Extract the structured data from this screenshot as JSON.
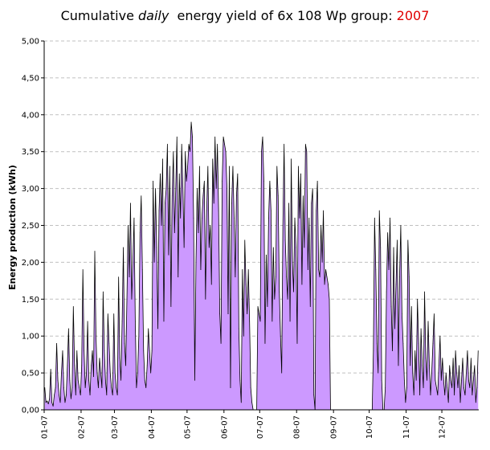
{
  "chart_data": {
    "type": "area",
    "title": {
      "part1": "Cumulative ",
      "emphasis": "daily",
      "part2": "  energy yield of 6x 108 Wp group: ",
      "year": "2007"
    },
    "xlabel": "",
    "ylabel": "Energy production (kWh)",
    "ylim": [
      0,
      5
    ],
    "yticks": [
      "0,00",
      "0,50",
      "1,00",
      "1,50",
      "2,00",
      "2,50",
      "3,00",
      "3,50",
      "4,00",
      "4,50",
      "5,00"
    ],
    "xtick_labels": [
      "01-07",
      "02-07",
      "03-07",
      "04-07",
      "05-07",
      "06-07",
      "07-07",
      "08-07",
      "09-07",
      "10-07",
      "11-07",
      "12-07"
    ],
    "grid": "horizontal dashed",
    "colors": {
      "fill": "#cc99ff",
      "line": "#000000",
      "grid": "#c0c0c0",
      "title_year": "#e00000"
    },
    "days_per_month": [
      31,
      28,
      31,
      30,
      31,
      30,
      31,
      31,
      30,
      31,
      30,
      31
    ],
    "series": [
      {
        "monthly": [
          [
            0.3,
            0.1,
            0.12,
            0.08,
            0.15,
            0.55,
            0.1,
            0.05,
            0.2,
            0.3,
            0.9,
            0.4,
            0.2,
            0.1,
            0.5,
            0.8,
            0.3,
            0.1,
            0.2,
            0.6,
            1.1,
            0.4,
            0.15,
            0.3,
            1.4,
            0.6,
            0.2,
            0.8,
            0.4,
            0.3,
            0.2
          ],
          [
            0.6,
            1.9,
            0.8,
            0.3,
            0.5,
            1.2,
            0.4,
            0.2,
            0.6,
            0.8,
            0.45,
            2.15,
            1.0,
            0.5,
            0.3,
            0.7,
            0.5,
            0.3,
            1.6,
            0.8,
            0.4,
            0.2,
            1.3,
            0.9,
            0.5,
            0.3,
            0.2,
            1.3
          ],
          [
            0.5,
            0.3,
            0.2,
            1.8,
            0.7,
            0.4,
            1.2,
            2.2,
            0.9,
            0.6,
            1.5,
            2.5,
            1.8,
            2.8,
            1.5,
            2.0,
            2.6,
            1.2,
            0.3,
            0.5,
            1.0,
            2.4,
            2.9,
            1.9,
            0.8,
            0.4,
            0.3,
            0.6,
            1.1,
            0.8,
            0.5
          ],
          [
            0.8,
            3.1,
            2.0,
            3.0,
            2.2,
            1.1,
            2.7,
            3.2,
            2.5,
            3.4,
            1.2,
            2.8,
            3.0,
            3.6,
            2.1,
            3.3,
            1.4,
            2.9,
            3.5,
            2.4,
            3.0,
            3.7,
            1.8,
            3.2,
            2.6,
            3.6,
            3.0,
            2.2,
            3.5,
            3.1
          ],
          [
            3.3,
            3.6,
            3.5,
            3.9,
            3.7,
            2.6,
            0.4,
            2.0,
            3.0,
            2.4,
            3.3,
            1.9,
            2.6,
            2.9,
            3.1,
            1.5,
            2.7,
            3.3,
            2.2,
            2.5,
            1.7,
            3.4,
            2.8,
            3.7,
            3.0,
            3.6,
            2.7,
            1.3,
            0.9,
            3.1,
            3.7
          ],
          [
            3.6,
            3.5,
            3.0,
            1.3,
            3.3,
            0.3,
            2.8,
            3.3,
            2.6,
            1.8,
            2.9,
            3.2,
            1.1,
            0.4,
            0.1,
            1.9,
            1.0,
            2.3,
            1.7,
            1.3,
            1.9,
            1.2,
            0.3,
            0.1,
            0,
            0,
            0,
            0,
            1.4,
            1.3
          ],
          [
            1.2,
            3.5,
            3.7,
            3.1,
            0.9,
            2.1,
            1.4,
            2.6,
            3.1,
            2.7,
            1.2,
            2.2,
            1.5,
            1.8,
            3.3,
            2.9,
            1.6,
            1.0,
            0.5,
            2.5,
            3.6,
            2.3,
            1.8,
            1.5,
            2.8,
            1.2,
            3.4,
            2.0,
            1.6,
            2.6,
            2.2
          ],
          [
            0.9,
            3.3,
            2.6,
            3.2,
            1.7,
            2.9,
            2.2,
            3.6,
            3.5,
            1.9,
            2.6,
            1.4,
            2.8,
            3.0,
            0.2,
            0,
            2.7,
            3.1,
            1.9,
            1.8,
            2.5,
            2.0,
            2.7,
            1.7,
            1.9,
            1.8,
            1.7,
            1.5,
            0,
            0,
            0
          ],
          [
            0,
            0,
            0,
            0,
            0,
            0,
            0,
            0,
            0,
            0,
            0,
            0,
            0,
            0,
            0,
            0,
            0,
            0,
            0,
            0,
            0,
            0,
            0,
            0,
            0,
            0,
            0,
            0,
            0,
            0
          ],
          [
            0,
            0,
            0,
            0.8,
            2.6,
            1.9,
            0.9,
            0.5,
            2.7,
            2.2,
            0.4,
            0,
            0,
            0.3,
            1.6,
            2.4,
            1.9,
            2.6,
            1.4,
            0.8,
            2.2,
            1.1,
            1.7,
            2.3,
            0.6,
            1.8,
            2.5,
            1.3,
            0.9,
            0.4,
            0.1
          ],
          [
            0.3,
            2.3,
            1.8,
            0.6,
            1.4,
            0.5,
            0.2,
            0.8,
            0.4,
            1.5,
            0.9,
            0.2,
            1.1,
            0.6,
            0.3,
            1.6,
            0.7,
            0.4,
            1.2,
            0.6,
            0.2,
            0.5,
            0.9,
            1.3,
            0.4,
            0.3,
            0.2,
            0.6,
            1.0,
            0.4
          ],
          [
            0.7,
            0.4,
            0.2,
            0.5,
            0.3,
            0.1,
            0.6,
            0.4,
            0.3,
            0.7,
            0.2,
            0.8,
            0.5,
            0.3,
            0.6,
            0.1,
            0.4,
            0.7,
            0.3,
            0.2,
            0.5,
            0.8,
            0.4,
            0.3,
            0.7,
            0.2,
            0.4,
            0.6,
            0.1,
            0.3,
            0.8
          ]
        ]
      }
    ]
  }
}
